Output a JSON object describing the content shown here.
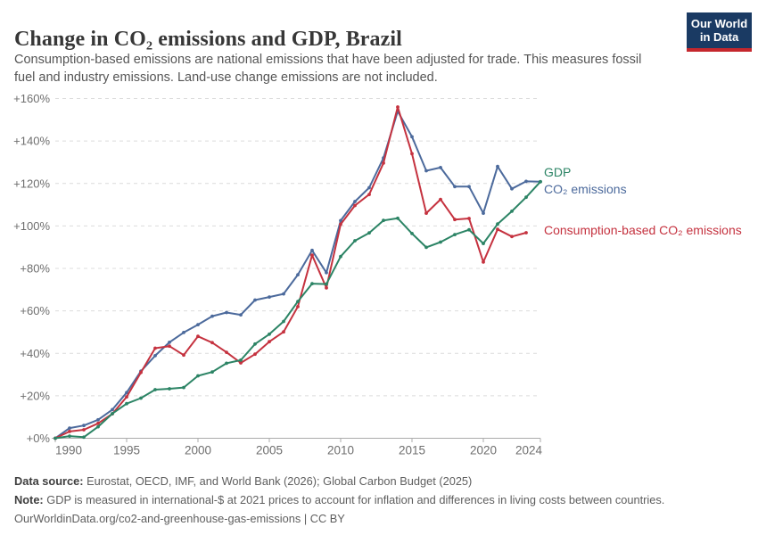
{
  "header": {
    "title": "Change in CO₂ emissions and GDP, Brazil",
    "subtitle": "Consumption-based emissions are national emissions that have been adjusted for trade. This measures fossil fuel and industry emissions. Land-use change emissions are not included.",
    "logo": {
      "line1": "Our World",
      "line2": "in Data"
    }
  },
  "chart_data": {
    "type": "line",
    "x_start": 1990,
    "x_end": 2024,
    "x": [
      1990,
      1991,
      1992,
      1993,
      1994,
      1995,
      1996,
      1997,
      1998,
      1999,
      2000,
      2001,
      2002,
      2003,
      2004,
      2005,
      2006,
      2007,
      2008,
      2009,
      2010,
      2011,
      2012,
      2013,
      2014,
      2015,
      2016,
      2017,
      2018,
      2019,
      2020,
      2021,
      2022,
      2023,
      2024
    ],
    "series": [
      {
        "name": "CO₂ emissions",
        "color": "#4C6A9C",
        "start_year": 1990,
        "values": [
          0,
          4.8,
          6.0,
          8.7,
          13.5,
          21.5,
          31.6,
          38.9,
          45.2,
          49.8,
          53.5,
          57.5,
          59.2,
          58.1,
          65.1,
          66.5,
          68.0,
          77.0,
          88.5,
          78.0,
          102.5,
          111.5,
          118.0,
          132.0,
          154.0,
          142.0,
          126.0,
          127.5,
          118.5,
          118.5,
          106.0,
          128.0,
          117.5,
          121.0,
          120.8
        ]
      },
      {
        "name": "Consumption-based CO₂ emissions",
        "color": "#C5323F",
        "start_year": 1990,
        "values": [
          0,
          3.2,
          4.0,
          7.0,
          11.5,
          19.5,
          31.0,
          42.4,
          43.4,
          39.2,
          48.0,
          45.0,
          40.5,
          35.5,
          39.6,
          45.5,
          50.1,
          62.0,
          86.2,
          70.8,
          100.8,
          109.6,
          114.8,
          129.6,
          156.0,
          134.0,
          106.0,
          112.5,
          103.0,
          103.5,
          83.0,
          98.4,
          95.0,
          96.8
        ]
      },
      {
        "name": "GDP",
        "color": "#2C8465",
        "start_year": 1990,
        "values": [
          0,
          1.0,
          0.5,
          5.4,
          11.6,
          16.3,
          18.9,
          22.9,
          23.3,
          23.9,
          29.4,
          31.2,
          35.3,
          36.8,
          44.4,
          49.0,
          55.0,
          64.4,
          72.8,
          72.6,
          85.6,
          93.0,
          96.7,
          102.6,
          103.6,
          96.4,
          89.9,
          92.4,
          95.9,
          98.2,
          91.7,
          100.9,
          106.9,
          113.5,
          120.8
        ]
      }
    ],
    "ylim": [
      0,
      160
    ],
    "y_ticks": [
      0,
      20,
      40,
      60,
      80,
      100,
      120,
      140,
      160
    ],
    "y_tick_labels": [
      "+0%",
      "+20%",
      "+40%",
      "+60%",
      "+80%",
      "+100%",
      "+120%",
      "+140%",
      "+160%"
    ],
    "x_ticks": [
      1990,
      1995,
      2000,
      2005,
      2010,
      2015,
      2020,
      2024
    ],
    "x_tick_labels": [
      "1990",
      "1995",
      "2000",
      "2005",
      "2010",
      "2015",
      "2020",
      "2024"
    ],
    "grid": "dashed horizontal",
    "legend_position": "right-of-line-end"
  },
  "footer": {
    "data_source_label": "Data source:",
    "data_source": " Eurostat, OECD, IMF, and World Bank (2026); Global Carbon Budget (2025)",
    "note_label": "Note:",
    "note": " GDP is measured in international-$ at 2021 prices to account for inflation and differences in living costs between countries.",
    "url": "OurWorldinData.org/co2-and-greenhouse-gas-emissions",
    "divider": " | ",
    "license": "CC BY"
  }
}
